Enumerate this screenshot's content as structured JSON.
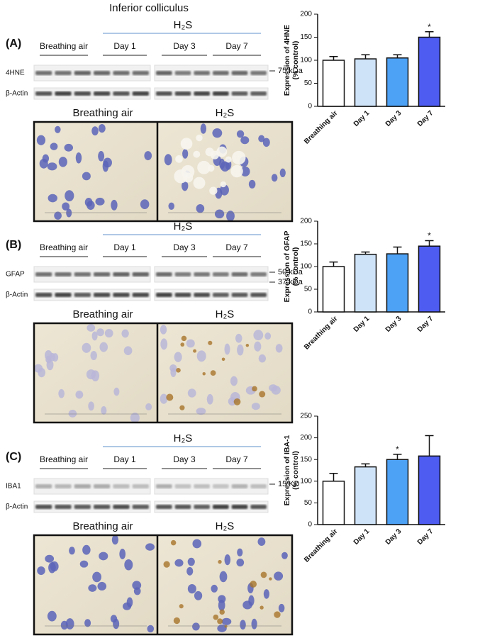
{
  "title": "Inferior colliculus",
  "panels": [
    {
      "label": "(A)",
      "treatment": "H₂S",
      "groups": [
        "Breathing air",
        "Day 1",
        "Day 3",
        "Day 7"
      ],
      "blots": [
        {
          "name": "4HNE",
          "marker": "75 kDa"
        },
        {
          "name": "β-Actin"
        }
      ],
      "images": [
        "Breathing air",
        "H₂S"
      ]
    },
    {
      "label": "(B)",
      "treatment": "H₂S",
      "groups": [
        "Breathing air",
        "Day 1",
        "Day 3",
        "Day 7"
      ],
      "blots": [
        {
          "name": "GFAP",
          "marker": "50 kDa",
          "marker2": "37 kDa"
        },
        {
          "name": "β-Actin"
        }
      ],
      "images": [
        "Breathing air",
        "H₂S"
      ]
    },
    {
      "label": "(C)",
      "treatment": "H₂S",
      "groups": [
        "Breathing air",
        "Day 1",
        "Day 3",
        "Day 7"
      ],
      "blots": [
        {
          "name": "IBA1",
          "marker": "15 KD"
        },
        {
          "name": "β-Actin"
        }
      ],
      "images": [
        "Breathing air",
        "H₂S"
      ]
    }
  ],
  "chart_data": [
    {
      "type": "bar",
      "ylabel": [
        "Expression of 4HNE",
        "(% control)"
      ],
      "categories": [
        "Breathing air",
        "Day 1",
        "Day 3",
        "Day 7"
      ],
      "values": [
        100,
        103,
        105,
        150
      ],
      "errors": [
        8,
        9,
        7,
        12
      ],
      "colors": [
        "#ffffff",
        "#cfe3f8",
        "#4ea2f6",
        "#4f5cf2"
      ],
      "significance": [
        null,
        null,
        null,
        "*"
      ],
      "ylim": [
        0,
        200
      ],
      "yticks": [
        0,
        50,
        100,
        150,
        200
      ]
    },
    {
      "type": "bar",
      "ylabel": [
        "Expression of GFAP",
        "(% control)"
      ],
      "categories": [
        "Breathing air",
        "Day 1",
        "Day 3",
        "Day 7"
      ],
      "values": [
        100,
        127,
        128,
        145
      ],
      "errors": [
        10,
        5,
        15,
        12
      ],
      "colors": [
        "#ffffff",
        "#cfe3f8",
        "#4ea2f6",
        "#4f5cf2"
      ],
      "significance": [
        null,
        null,
        null,
        "*"
      ],
      "ylim": [
        0,
        200
      ],
      "yticks": [
        0,
        50,
        100,
        150,
        200
      ]
    },
    {
      "type": "bar",
      "ylabel": [
        "Expression of IBA-1",
        "(% control)"
      ],
      "categories": [
        "Breathing air",
        "Day 1",
        "Day 3",
        "Day 7"
      ],
      "values": [
        100,
        133,
        150,
        158
      ],
      "errors": [
        18,
        7,
        12,
        47
      ],
      "colors": [
        "#ffffff",
        "#cfe3f8",
        "#4ea2f6",
        "#4f5cf2"
      ],
      "significance": [
        null,
        null,
        "*",
        null
      ],
      "ylim": [
        0,
        250
      ],
      "yticks": [
        0,
        50,
        100,
        150,
        200,
        250
      ]
    }
  ]
}
